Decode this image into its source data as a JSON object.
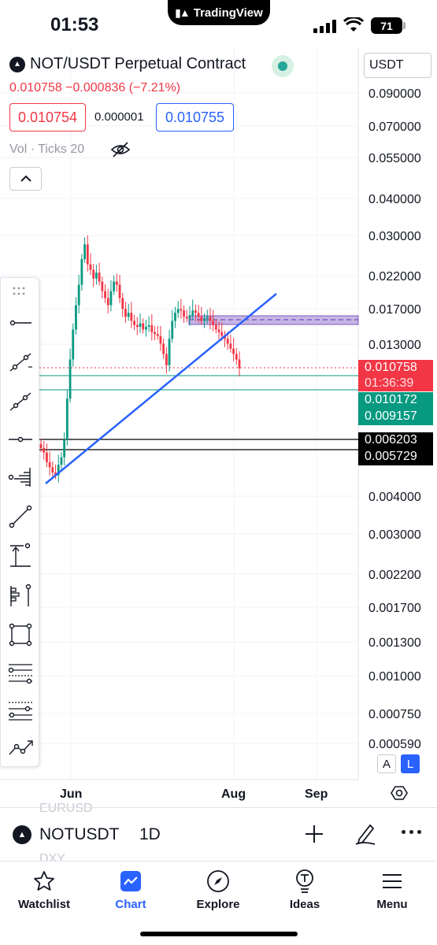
{
  "status_bar": {
    "time": "01:53",
    "app_pill": "TradingView",
    "battery": "71"
  },
  "header": {
    "symbol_title": "NOT/USDT Perpetual Contract",
    "price_change": "0.010758 −0.000836 (−7.21%)",
    "bid": "0.010754",
    "spread": "0.000001",
    "ask": "0.010755",
    "volume_label": "Vol · Ticks 20"
  },
  "price_axis": {
    "currency": "USDT",
    "ticks": [
      "0.090000",
      "0.070000",
      "0.055000",
      "0.040000",
      "0.030000",
      "0.022000",
      "0.017000",
      "0.013000",
      "0.004000",
      "0.003000",
      "0.002200",
      "0.001700",
      "0.001300",
      "0.001000",
      "0.000750",
      "0.000590"
    ],
    "current_price": "0.010758",
    "countdown": "01:36:39",
    "green_levels": [
      "0.010172",
      "0.009157"
    ],
    "black_levels": [
      "0.006203",
      "0.005729"
    ],
    "scale_auto": "A",
    "scale_log": "L"
  },
  "time_axis": {
    "labels": [
      "Jun",
      "Aug",
      "Sep"
    ]
  },
  "chart_data": {
    "type": "candlestick",
    "x_labels": [
      "Jun",
      "Aug",
      "Sep"
    ],
    "price_scale": "log",
    "current_price": 0.010758,
    "horizontal_levels": [
      0.010172,
      0.009157,
      0.006203,
      0.005729
    ],
    "closes": [
      0.0058,
      0.0056,
      0.0052,
      0.005,
      0.0048,
      0.0047,
      0.0051,
      0.0054,
      0.0062,
      0.0085,
      0.0115,
      0.0145,
      0.0175,
      0.0205,
      0.025,
      0.028,
      0.024,
      0.023,
      0.0215,
      0.0225,
      0.021,
      0.0195,
      0.0185,
      0.0175,
      0.0195,
      0.021,
      0.0205,
      0.0185,
      0.017,
      0.016,
      0.0165,
      0.0155,
      0.015,
      0.0148,
      0.0152,
      0.0145,
      0.0148,
      0.015,
      0.0142,
      0.014,
      0.0138,
      0.013,
      0.012,
      0.011,
      0.0135,
      0.0155,
      0.0165,
      0.017,
      0.0168,
      0.016,
      0.0158,
      0.0162,
      0.0168,
      0.0165,
      0.016,
      0.0155,
      0.0158,
      0.016,
      0.0155,
      0.015,
      0.0145,
      0.0142,
      0.0138,
      0.0135,
      0.013,
      0.0125,
      0.012,
      0.0115,
      0.010758
    ]
  },
  "toolbar_icons": [
    "grip-icon",
    "horizontal-line-icon",
    "trend-angle-icon",
    "extended-line-icon",
    "horizontal-ray-icon",
    "volume-profile-icon",
    "trend-line-icon",
    "long-position-icon",
    "bars-pattern-icon",
    "rectangle-icon",
    "fib-retracement-icon",
    "fib-extension-icon",
    "path-icon"
  ],
  "ghost_text": {
    "line1": "EURUSD",
    "line2": "DXY"
  },
  "symbol_bar": {
    "symbol": "NOTUSDT",
    "interval": "1D"
  },
  "nav": {
    "items": [
      {
        "label": "Watchlist",
        "icon": "star-icon"
      },
      {
        "label": "Chart",
        "icon": "chart-icon"
      },
      {
        "label": "Explore",
        "icon": "compass-icon"
      },
      {
        "label": "Ideas",
        "icon": "lightbulb-icon"
      },
      {
        "label": "Menu",
        "icon": "hamburger-icon"
      }
    ],
    "active": "Chart"
  },
  "colors": {
    "up": "#089981",
    "down": "#f23645",
    "accent": "#2962ff",
    "zone": "#9c6ad6"
  }
}
